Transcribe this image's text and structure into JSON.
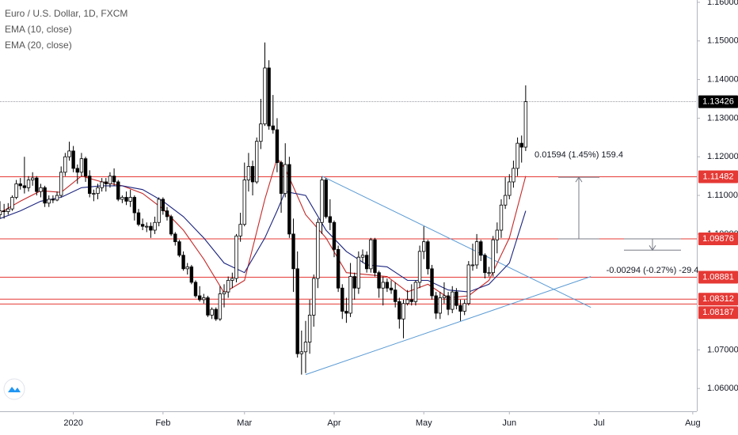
{
  "chart_data": {
    "type": "candlestick",
    "title": "Euro / U.S. Dollar, 1D, FXCM",
    "up_color": "#ffffff",
    "down_color": "#000000",
    "outline_color": "#000000",
    "candles": [
      [
        1.105,
        1.1085,
        1.104,
        1.106
      ],
      [
        1.106,
        1.1078,
        1.104,
        1.1058
      ],
      [
        1.1058,
        1.108,
        1.105,
        1.1065
      ],
      [
        1.1065,
        1.11,
        1.106,
        1.1095
      ],
      [
        1.1095,
        1.114,
        1.109,
        1.113
      ],
      [
        1.113,
        1.1145,
        1.1115,
        1.1125
      ],
      [
        1.1125,
        1.12,
        1.1105,
        1.112
      ],
      [
        1.112,
        1.115,
        1.111,
        1.114
      ],
      [
        1.114,
        1.116,
        1.1125,
        1.1145
      ],
      [
        1.1145,
        1.115,
        1.11,
        1.111
      ],
      [
        1.111,
        1.113,
        1.1095,
        1.112
      ],
      [
        1.112,
        1.1125,
        1.107,
        1.108
      ],
      [
        1.108,
        1.11,
        1.107,
        1.109
      ],
      [
        1.109,
        1.11,
        1.108,
        1.1088
      ],
      [
        1.1088,
        1.111,
        1.1085,
        1.11
      ],
      [
        1.11,
        1.1175,
        1.1095,
        1.116
      ],
      [
        1.116,
        1.121,
        1.115,
        1.12
      ],
      [
        1.12,
        1.1239,
        1.119,
        1.1215
      ],
      [
        1.1215,
        1.1228,
        1.116,
        1.117
      ],
      [
        1.117,
        1.118,
        1.113,
        1.116
      ],
      [
        1.116,
        1.121,
        1.115,
        1.1195
      ],
      [
        1.1195,
        1.12,
        1.1135,
        1.115
      ],
      [
        1.115,
        1.1165,
        1.1095,
        1.1105
      ],
      [
        1.1105,
        1.1115,
        1.1085,
        1.1105
      ],
      [
        1.1105,
        1.113,
        1.109,
        1.112
      ],
      [
        1.112,
        1.1145,
        1.111,
        1.1135
      ],
      [
        1.1135,
        1.1145,
        1.111,
        1.113
      ],
      [
        1.113,
        1.116,
        1.112,
        1.115
      ],
      [
        1.115,
        1.117,
        1.1125,
        1.1135
      ],
      [
        1.1135,
        1.114,
        1.1085,
        1.109
      ],
      [
        1.109,
        1.11,
        1.108,
        1.1095
      ],
      [
        1.1095,
        1.111,
        1.1075,
        1.1085
      ],
      [
        1.1085,
        1.1115,
        1.107,
        1.1095
      ],
      [
        1.1095,
        1.11,
        1.1035,
        1.1055
      ],
      [
        1.1055,
        1.1065,
        1.102,
        1.1025
      ],
      [
        1.1025,
        1.104,
        1.101,
        1.102
      ],
      [
        1.102,
        1.103,
        1.1005,
        1.102
      ],
      [
        1.102,
        1.103,
        1.099,
        1.101
      ],
      [
        1.101,
        1.1045,
        1.1,
        1.103
      ],
      [
        1.103,
        1.1095,
        1.102,
        1.109
      ],
      [
        1.109,
        1.1095,
        1.105,
        1.106
      ],
      [
        1.106,
        1.107,
        1.1035,
        1.1045
      ],
      [
        1.1045,
        1.105,
        1.0995,
        1.1
      ],
      [
        1.1,
        1.1005,
        1.097,
        1.098
      ],
      [
        1.098,
        1.0985,
        1.094,
        1.0945
      ],
      [
        1.0945,
        1.0955,
        1.0905,
        1.091
      ],
      [
        1.091,
        1.0925,
        1.0895,
        1.0915
      ],
      [
        1.0915,
        1.092,
        1.087,
        1.0875
      ],
      [
        1.0875,
        1.088,
        1.0835,
        1.084
      ],
      [
        1.084,
        1.0865,
        1.0825,
        1.083
      ],
      [
        1.083,
        1.0845,
        1.082,
        1.0835
      ],
      [
        1.0835,
        1.084,
        1.0785,
        1.079
      ],
      [
        1.079,
        1.081,
        1.078,
        1.0805
      ],
      [
        1.0805,
        1.081,
        1.0775,
        1.078
      ],
      [
        1.078,
        1.0865,
        1.0775,
        1.0845
      ],
      [
        1.0845,
        1.087,
        1.081,
        1.085
      ],
      [
        1.085,
        1.089,
        1.0835,
        1.088
      ],
      [
        1.088,
        1.09,
        1.086,
        1.0885
      ],
      [
        1.0885,
        1.1,
        1.0875,
        1.0995
      ],
      [
        1.0995,
        1.1055,
        1.098,
        1.1025
      ],
      [
        1.1025,
        1.1185,
        1.102,
        1.114
      ],
      [
        1.114,
        1.121,
        1.111,
        1.1175
      ],
      [
        1.1175,
        1.119,
        1.11,
        1.1135
      ],
      [
        1.1135,
        1.125,
        1.113,
        1.124
      ],
      [
        1.124,
        1.135,
        1.122,
        1.1285
      ],
      [
        1.1285,
        1.1496,
        1.128,
        1.143
      ],
      [
        1.143,
        1.145,
        1.127,
        1.128
      ],
      [
        1.128,
        1.136,
        1.126,
        1.127
      ],
      [
        1.127,
        1.13,
        1.116,
        1.1185
      ],
      [
        1.1185,
        1.119,
        1.1055,
        1.1105
      ],
      [
        1.1105,
        1.1235,
        1.1095,
        1.118
      ],
      [
        1.118,
        1.12,
        1.099,
        1.1
      ],
      [
        1.1,
        1.104,
        1.085,
        1.091
      ],
      [
        1.091,
        1.0955,
        1.068,
        1.069
      ],
      [
        1.069,
        1.075,
        1.0636,
        1.0695
      ],
      [
        1.0695,
        1.0775,
        1.064,
        1.072
      ],
      [
        1.072,
        1.083,
        1.069,
        1.079
      ],
      [
        1.079,
        1.0895,
        1.076,
        1.0885
      ],
      [
        1.0885,
        1.104,
        1.086,
        1.103
      ],
      [
        1.103,
        1.1148,
        1.1,
        1.114
      ],
      [
        1.114,
        1.1145,
        1.104,
        1.1045
      ],
      [
        1.1045,
        1.109,
        1.101,
        1.103
      ],
      [
        1.103,
        1.1035,
        1.094,
        1.096
      ],
      [
        1.096,
        1.097,
        1.085,
        1.086
      ],
      [
        1.086,
        1.087,
        1.078,
        1.08
      ],
      [
        1.08,
        1.0835,
        1.077,
        1.0795
      ],
      [
        1.0795,
        1.0925,
        1.0785,
        1.089
      ],
      [
        1.089,
        1.09,
        1.083,
        1.086
      ],
      [
        1.086,
        1.0955,
        1.0845,
        1.094
      ],
      [
        1.094,
        1.096,
        1.0925,
        1.0945
      ],
      [
        1.0945,
        1.0955,
        1.09,
        1.091
      ],
      [
        1.091,
        1.099,
        1.09,
        1.0985
      ],
      [
        1.0985,
        1.099,
        1.089,
        1.09
      ],
      [
        1.09,
        1.0905,
        1.0835,
        1.086
      ],
      [
        1.086,
        1.089,
        1.0815,
        1.0875
      ],
      [
        1.0875,
        1.0885,
        1.085,
        1.086
      ],
      [
        1.086,
        1.088,
        1.0845,
        1.0855
      ],
      [
        1.0855,
        1.0875,
        1.081,
        1.0825
      ],
      [
        1.0825,
        1.0835,
        1.0755,
        1.078
      ],
      [
        1.078,
        1.083,
        1.073,
        1.082
      ],
      [
        1.082,
        1.0855,
        1.0815,
        1.083
      ],
      [
        1.083,
        1.087,
        1.0815,
        1.0825
      ],
      [
        1.0825,
        1.088,
        1.0815,
        1.0875
      ],
      [
        1.0875,
        1.097,
        1.086,
        1.0955
      ],
      [
        1.0955,
        1.102,
        1.0935,
        1.098
      ],
      [
        1.098,
        1.0985,
        1.0895,
        1.091
      ],
      [
        1.091,
        1.092,
        1.083,
        1.084
      ],
      [
        1.084,
        1.085,
        1.078,
        1.0795
      ],
      [
        1.0795,
        1.085,
        1.078,
        1.0835
      ],
      [
        1.0835,
        1.0875,
        1.082,
        1.084
      ],
      [
        1.084,
        1.085,
        1.079,
        1.0805
      ],
      [
        1.0805,
        1.0865,
        1.0795,
        1.085
      ],
      [
        1.085,
        1.086,
        1.0805,
        1.0815
      ],
      [
        1.0815,
        1.083,
        1.0775,
        1.08
      ],
      [
        1.08,
        1.083,
        1.079,
        1.082
      ],
      [
        1.082,
        1.093,
        1.0815,
        1.092
      ],
      [
        1.092,
        1.0975,
        1.0905,
        1.092
      ],
      [
        1.092,
        1.1,
        1.091,
        1.098
      ],
      [
        1.098,
        1.0985,
        1.093,
        1.0945
      ],
      [
        1.0945,
        1.095,
        1.0885,
        1.09
      ],
      [
        1.09,
        1.0915,
        1.089,
        1.09
      ],
      [
        1.09,
        1.0995,
        1.089,
        1.0985
      ],
      [
        1.0985,
        1.103,
        1.095,
        1.101
      ],
      [
        1.101,
        1.109,
        1.099,
        1.1075
      ],
      [
        1.1075,
        1.1147,
        1.1065,
        1.11
      ],
      [
        1.11,
        1.1155,
        1.109,
        1.1135
      ],
      [
        1.1135,
        1.119,
        1.112,
        1.117
      ],
      [
        1.117,
        1.125,
        1.115,
        1.1235
      ],
      [
        1.1235,
        1.1255,
        1.1185,
        1.1225
      ],
      [
        1.1225,
        1.1385,
        1.1215,
        1.13426
      ]
    ],
    "xlim": [
      0,
      171
    ],
    "xticks": [
      {
        "value": 18,
        "label": "2020"
      },
      {
        "value": 40,
        "label": "Feb"
      },
      {
        "value": 60,
        "label": "Mar"
      },
      {
        "value": 82,
        "label": "Apr"
      },
      {
        "value": 104,
        "label": "May"
      },
      {
        "value": 125,
        "label": "Jun"
      },
      {
        "value": 147,
        "label": "Jul"
      },
      {
        "value": 170,
        "label": "Aug"
      }
    ],
    "ylim": [
      1.0541,
      1.1606
    ],
    "yticks": [
      {
        "value": 1.06,
        "label": "1.06000"
      },
      {
        "value": 1.07,
        "label": "1.07000"
      },
      {
        "value": 1.1,
        "label": "1.10000"
      },
      {
        "value": 1.11,
        "label": "1.11000"
      },
      {
        "value": 1.12,
        "label": "1.12000"
      },
      {
        "value": 1.13,
        "label": "1.13000"
      },
      {
        "value": 1.14,
        "label": "1.14000"
      },
      {
        "value": 1.15,
        "label": "1.15000"
      },
      {
        "value": 1.16,
        "label": "1.16000"
      }
    ],
    "series": [
      {
        "name": "EMA (10, close)",
        "color": "#c62828",
        "x": [
          0,
          5,
          10,
          15,
          20,
          25,
          30,
          35,
          40,
          45,
          50,
          55,
          60,
          65,
          68,
          70,
          75,
          80,
          85,
          90,
          95,
          100,
          105,
          110,
          115,
          120,
          125,
          129
        ],
        "values": [
          1.1055,
          1.1085,
          1.1112,
          1.1108,
          1.115,
          1.1135,
          1.1125,
          1.1105,
          1.1065,
          1.101,
          1.0935,
          1.0848,
          1.088,
          1.109,
          1.1196,
          1.117,
          1.105,
          1.099,
          1.09,
          1.0895,
          1.089,
          1.085,
          1.087,
          1.0835,
          1.084,
          1.088,
          1.099,
          1.115
        ]
      },
      {
        "name": "EMA (20, close)",
        "color": "#1a237e",
        "x": [
          0,
          5,
          10,
          15,
          20,
          25,
          30,
          35,
          40,
          45,
          50,
          55,
          60,
          65,
          68,
          70,
          75,
          80,
          85,
          90,
          95,
          100,
          105,
          110,
          115,
          120,
          125,
          129
        ],
        "values": [
          1.104,
          1.106,
          1.1085,
          1.1095,
          1.112,
          1.1125,
          1.1125,
          1.1115,
          1.1085,
          1.1045,
          1.099,
          1.0925,
          1.09,
          1.099,
          1.106,
          1.111,
          1.11,
          1.101,
          1.0955,
          1.092,
          1.0915,
          1.088,
          1.088,
          1.0855,
          1.085,
          1.087,
          1.0925,
          1.106
        ]
      }
    ],
    "levels": [
      {
        "value": 1.13426,
        "color": "#000000",
        "style": "dotted"
      },
      {
        "value": 1.11482,
        "color": "#e53935",
        "style": "solid"
      },
      {
        "value": 1.09876,
        "color": "#e53935",
        "style": "solid"
      },
      {
        "value": 1.08881,
        "color": "#e53935",
        "style": "solid"
      },
      {
        "value": 1.08312,
        "color": "#e53935",
        "style": "solid"
      },
      {
        "value": 1.08187,
        "color": "#e53935",
        "style": "solid"
      }
    ],
    "trendlines": [
      {
        "x": [
          79,
          145
        ],
        "y": [
          1.115,
          1.081
        ],
        "color": "#5b9bd5"
      },
      {
        "x": [
          75,
          145
        ],
        "y": [
          1.0636,
          1.089
        ],
        "color": "#5b9bd5"
      }
    ],
    "measures": [
      {
        "label": "0.01594 (1.45%) 159.4",
        "from": 1.09876,
        "to": 1.1147
      },
      {
        "label": "-0.00294 (-0.27%) -29.4",
        "from": 1.09876,
        "to": 1.09582
      }
    ]
  }
}
